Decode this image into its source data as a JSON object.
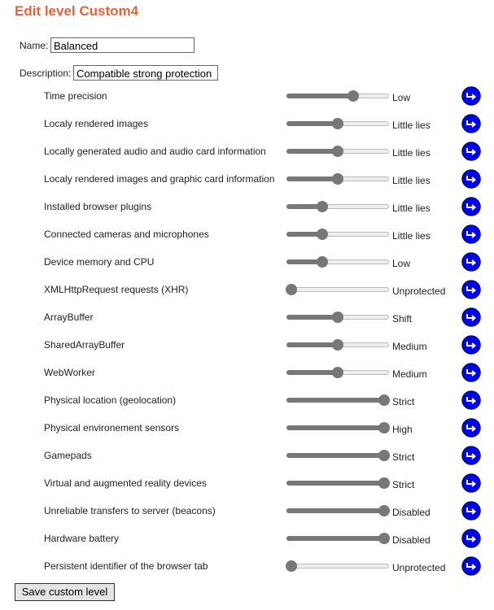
{
  "title": "Edit level Custom4",
  "name_label": "Name:",
  "name": "Balanced",
  "description_label": "Description:",
  "description": "Compatible strong protection",
  "settings": [
    {
      "label": "Time precision",
      "level": "Low",
      "value": 0.67
    },
    {
      "label": "Localy rendered images",
      "level": "Little lies",
      "value": 0.5
    },
    {
      "label": "Locally generated audio and audio card information",
      "level": "Little lies",
      "value": 0.5
    },
    {
      "label": "Localy rendered images and graphic card information",
      "level": "Little lies",
      "value": 0.5
    },
    {
      "label": "Installed browser plugins",
      "level": "Little lies",
      "value": 0.33
    },
    {
      "label": "Connected cameras and microphones",
      "level": "Little lies",
      "value": 0.33
    },
    {
      "label": "Device memory and CPU",
      "level": "Low",
      "value": 0.33
    },
    {
      "label": "XMLHttpRequest requests (XHR)",
      "level": "Unprotected",
      "value": 0
    },
    {
      "label": "ArrayBuffer",
      "level": "Shift",
      "value": 0.5
    },
    {
      "label": "SharedArrayBuffer",
      "level": "Medium",
      "value": 0.5
    },
    {
      "label": "WebWorker",
      "level": "Medium",
      "value": 0.5
    },
    {
      "label": "Physical location (geolocation)",
      "level": "Strict",
      "value": 1
    },
    {
      "label": "Physical environement sensors",
      "level": "High",
      "value": 1
    },
    {
      "label": "Gamepads",
      "level": "Strict",
      "value": 1
    },
    {
      "label": "Virtual and augmented reality devices",
      "level": "Strict",
      "value": 1
    },
    {
      "label": "Unreliable transfers to server (beacons)",
      "level": "Disabled",
      "value": 1
    },
    {
      "label": "Hardware battery",
      "level": "Disabled",
      "value": 1
    },
    {
      "label": "Persistent identifier of the browser tab",
      "level": "Unprotected",
      "value": 0
    }
  ],
  "save_button": "Save custom level"
}
